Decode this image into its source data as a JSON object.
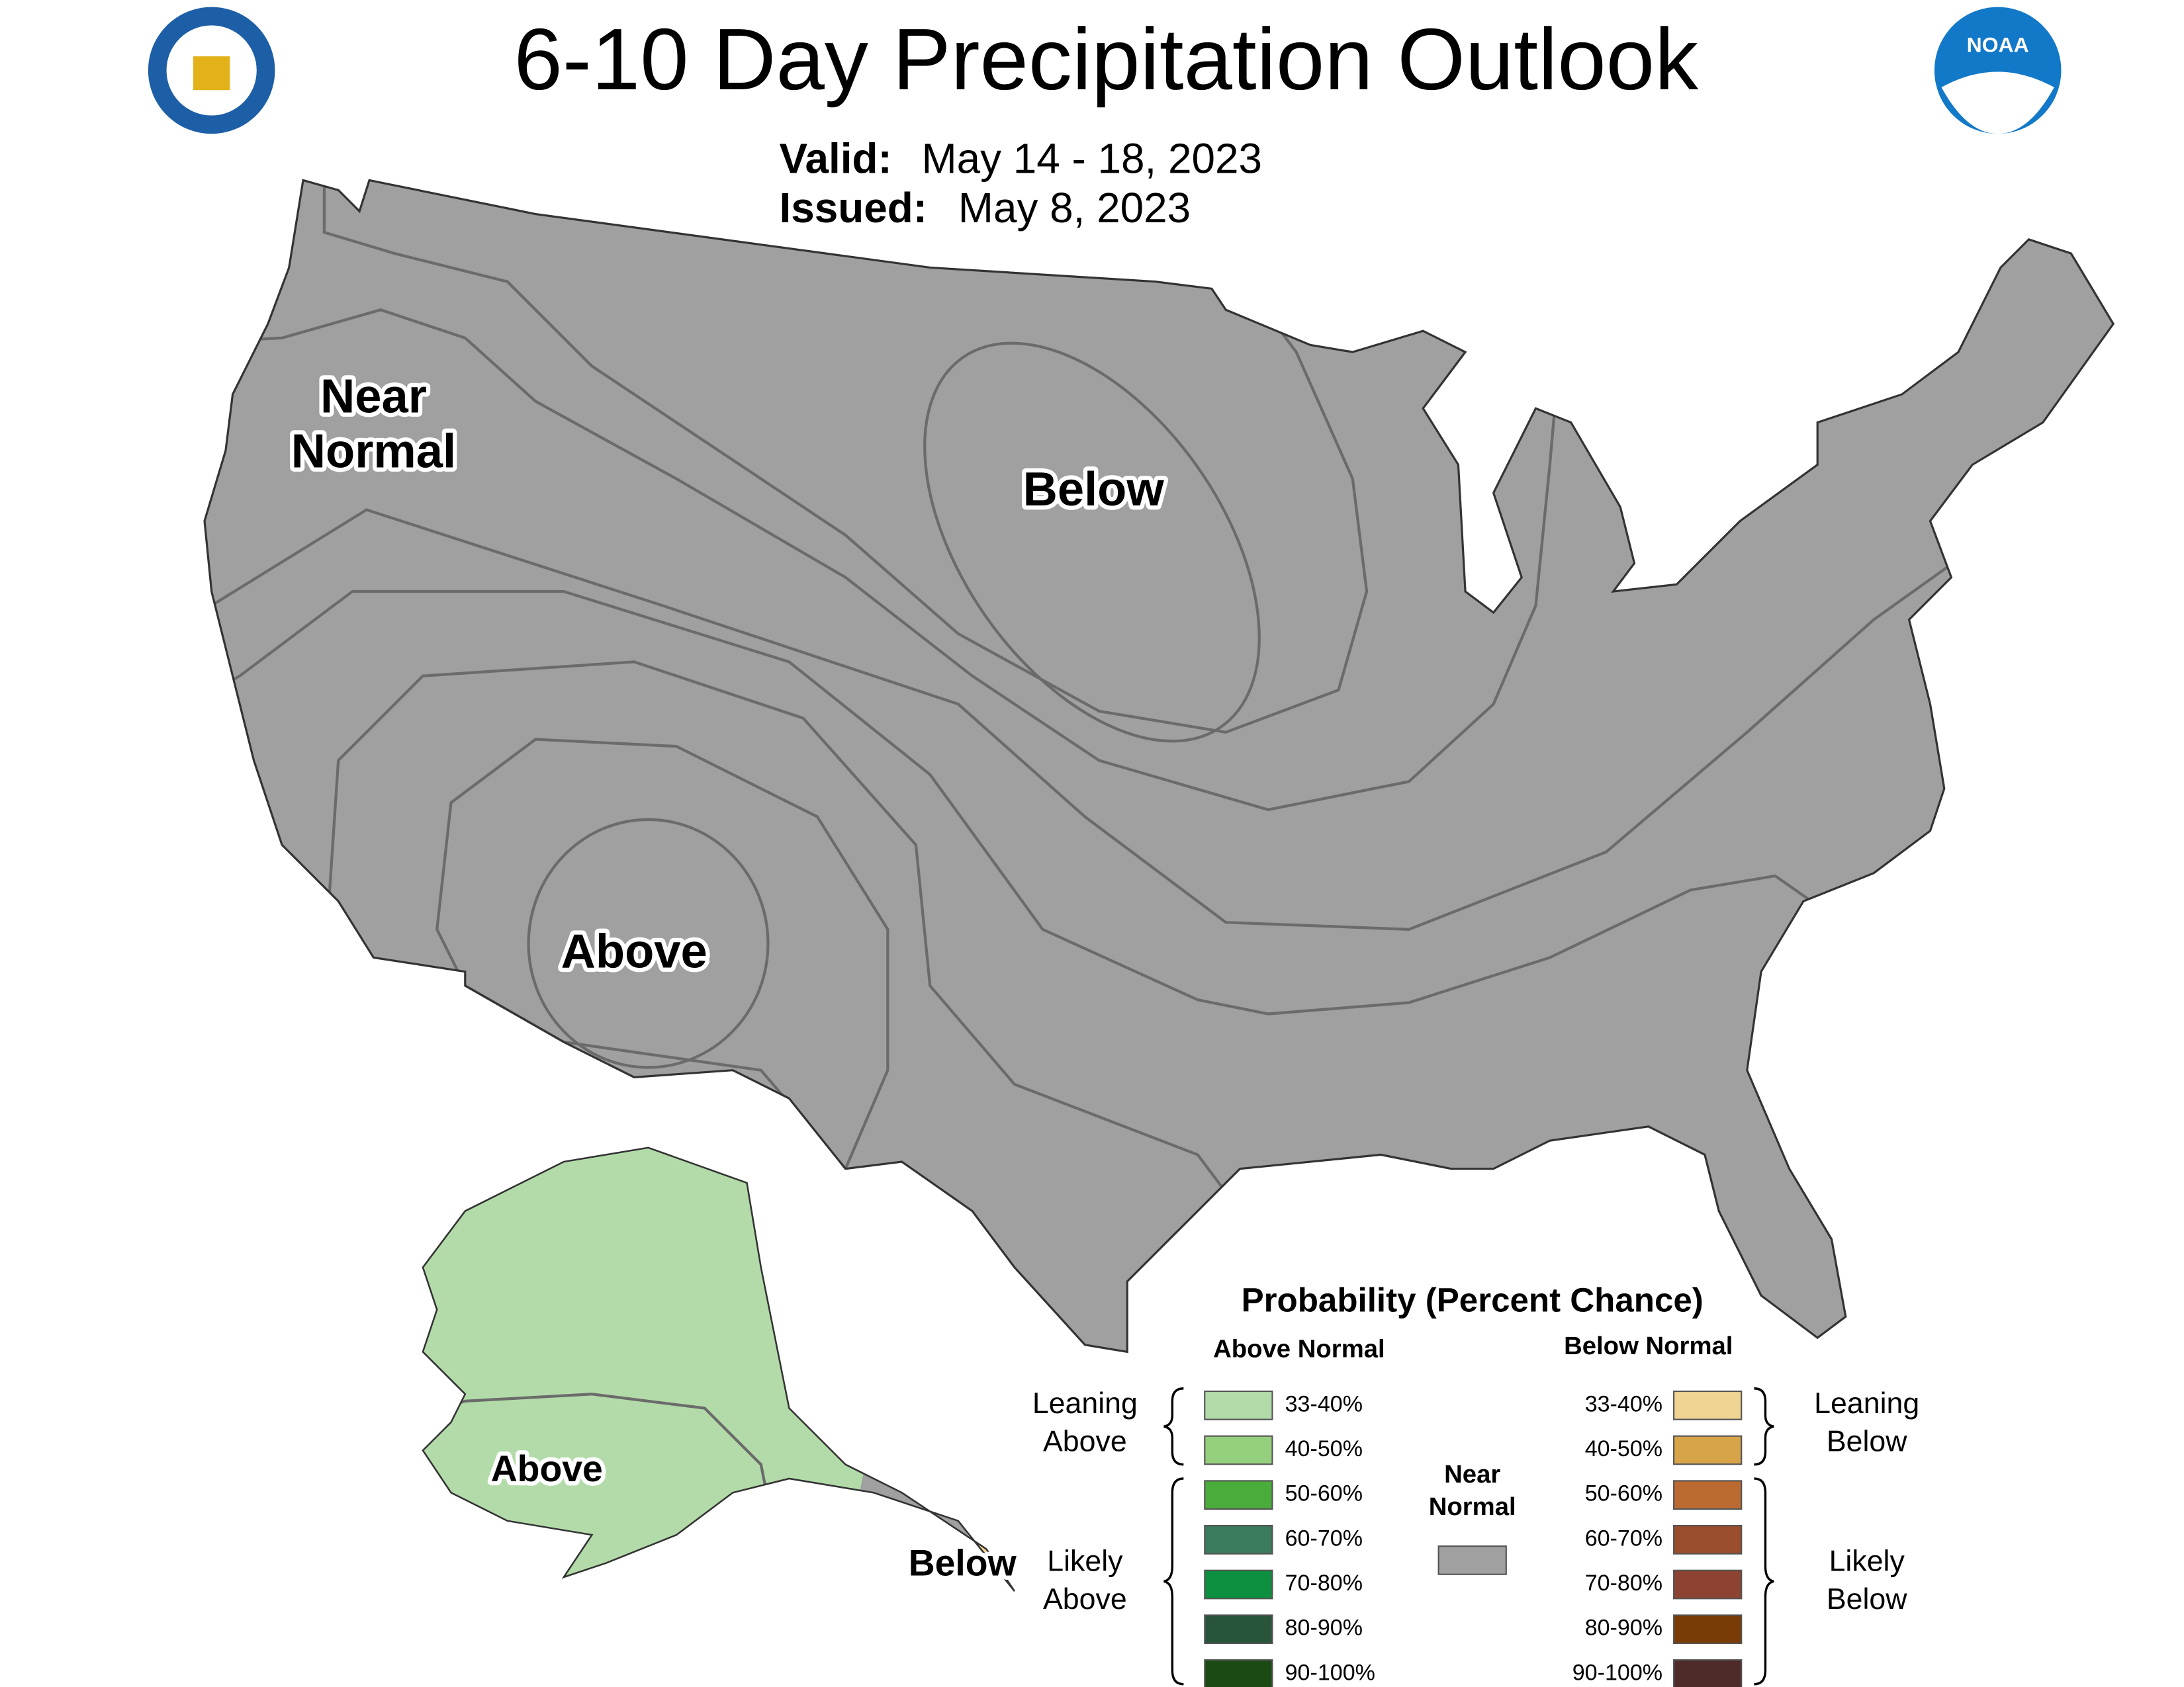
{
  "header": {
    "title": "6-10 Day Precipitation Outlook",
    "valid_label": "Valid:",
    "valid": "May 14 - 18, 2023",
    "issued_label": "Issued:",
    "issued": "May 8, 2023"
  },
  "logos": {
    "noaa": "NOAA"
  },
  "map_labels": {
    "near_normal": [
      "Near",
      "Normal"
    ],
    "below": "Below",
    "above": "Above",
    "alaska_above": "Above",
    "alaska_below": "Below"
  },
  "legend": {
    "title": "Probability (Percent Chance)",
    "above_header": "Above Normal",
    "below_header": "Below Normal",
    "near": [
      "Near",
      "Normal"
    ],
    "near_color": "#a0a0a0",
    "leaning_above": [
      "Leaning",
      "Above"
    ],
    "likely_above": [
      "Likely",
      "Above"
    ],
    "leaning_below": [
      "Leaning",
      "Below"
    ],
    "likely_below": [
      "Likely",
      "Below"
    ],
    "above_items": [
      {
        "label": "33-40%",
        "color": "#b3dba9"
      },
      {
        "label": "40-50%",
        "color": "#94cf7d"
      },
      {
        "label": "50-60%",
        "color": "#4aac3a"
      },
      {
        "label": "60-70%",
        "color": "#3a7a5d"
      },
      {
        "label": "70-80%",
        "color": "#0c8f3e"
      },
      {
        "label": "80-90%",
        "color": "#28553a"
      },
      {
        "label": "90-100%",
        "color": "#1c4a15"
      }
    ],
    "below_items": [
      {
        "label": "33-40%",
        "color": "#f0d493"
      },
      {
        "label": "40-50%",
        "color": "#d8a44a"
      },
      {
        "label": "50-60%",
        "color": "#bb6a31"
      },
      {
        "label": "60-70%",
        "color": "#9a4e2d"
      },
      {
        "label": "70-80%",
        "color": "#8c4331"
      },
      {
        "label": "80-90%",
        "color": "#7a3c06"
      },
      {
        "label": "90-100%",
        "color": "#4e2a28"
      }
    ]
  }
}
